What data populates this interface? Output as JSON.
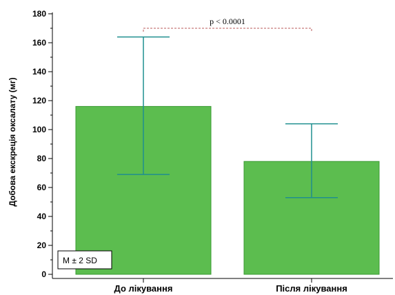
{
  "chart_data": {
    "type": "bar",
    "categories": [
      "До лікування",
      "Після лікування"
    ],
    "values": [
      116,
      78
    ],
    "error_high": [
      164,
      104
    ],
    "error_low": [
      69,
      53
    ],
    "ylabel": "Добова екскреція оксалату (мг)",
    "xlabel": "",
    "ylim": [
      0,
      180
    ],
    "yticks": [
      0,
      20,
      40,
      60,
      80,
      100,
      120,
      140,
      160,
      180
    ],
    "grid": false,
    "bar_color": "#5cbd4f",
    "bar_edge_color": "#3a9a33",
    "error_color": "#1f8f8f",
    "annotation": {
      "text": "p < 0.0001",
      "from": 0,
      "to": 1,
      "level": 170,
      "color": "#b85a5a"
    },
    "legend": {
      "text": "M ± 2 SD",
      "placement": "bottom-left"
    }
  }
}
